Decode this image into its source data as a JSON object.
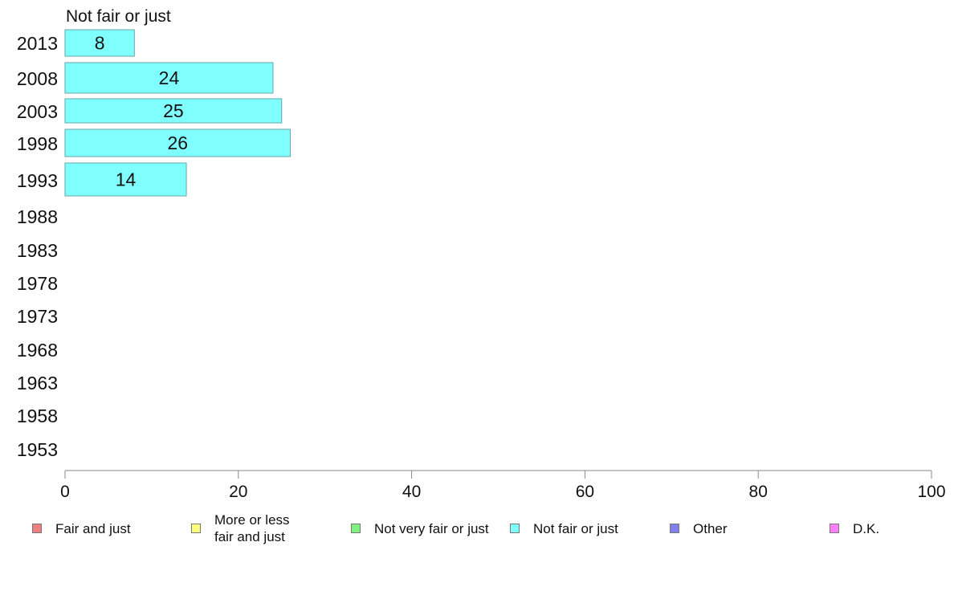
{
  "chart_data": {
    "type": "bar",
    "orientation": "horizontal",
    "title": "Not fair or just",
    "categories": [
      "2013",
      "2008",
      "2003",
      "1998",
      "1993",
      "1988",
      "1983",
      "1978",
      "1973",
      "1968",
      "1963",
      "1958",
      "1953"
    ],
    "series": [
      {
        "name": "Not fair or just",
        "color": "#80ffff",
        "values": [
          8,
          24,
          25,
          26,
          14,
          null,
          null,
          null,
          null,
          null,
          null,
          null,
          null
        ]
      }
    ],
    "xlim": [
      0,
      100
    ],
    "xticks": [
      "0",
      "20",
      "40",
      "60",
      "80",
      "100"
    ],
    "grid": false,
    "legend_position": "bottom"
  },
  "legend": [
    {
      "label": "Fair and just",
      "color": "#f08080"
    },
    {
      "label": "More or less\nfair and just",
      "color": "#ffff80"
    },
    {
      "label": "Not very fair or just",
      "color": "#80f080"
    },
    {
      "label": "Not fair or just",
      "color": "#80ffff"
    },
    {
      "label": "Other",
      "color": "#8080f0"
    },
    {
      "label": "D.K.",
      "color": "#ff80ff"
    }
  ]
}
